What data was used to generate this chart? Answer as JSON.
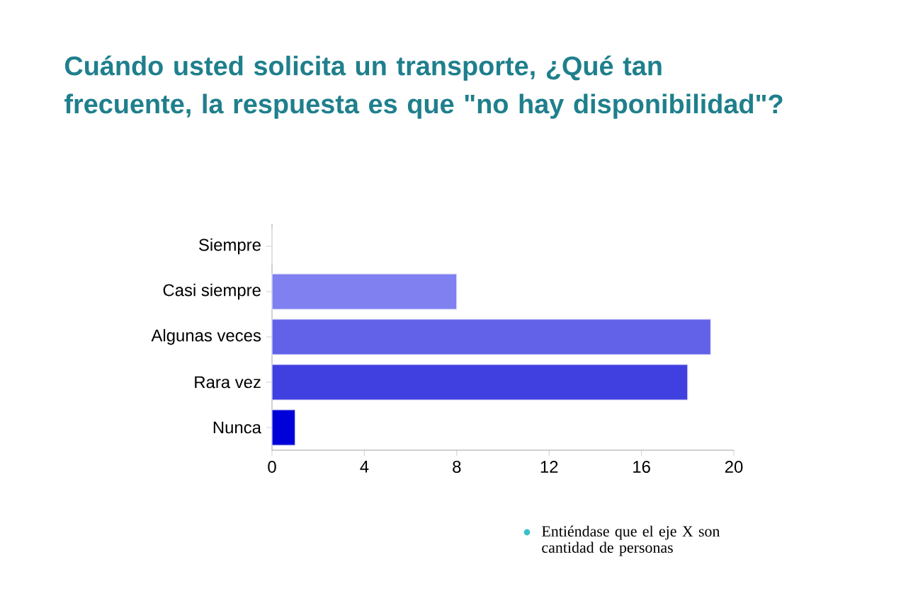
{
  "chart_data": {
    "type": "bar",
    "orientation": "horizontal",
    "title": "Cuándo usted solicita un transporte, ¿Qué tan frecuente, la respuesta es que \"no hay disponibilidad\"?",
    "categories": [
      "Siempre",
      "Casi siempre",
      "Algunas veces",
      "Rara vez",
      "Nunca"
    ],
    "values": [
      0,
      8,
      19,
      18,
      1
    ],
    "colors": [
      "#a0a0f8",
      "#8080f0",
      "#6262e8",
      "#4040e0",
      "#0000d8"
    ],
    "xlim": [
      0,
      20
    ],
    "xticks": [
      0,
      4,
      8,
      12,
      16,
      20
    ],
    "annotations": [
      "Entiéndase que el eje X son cantidad de personas"
    ]
  }
}
